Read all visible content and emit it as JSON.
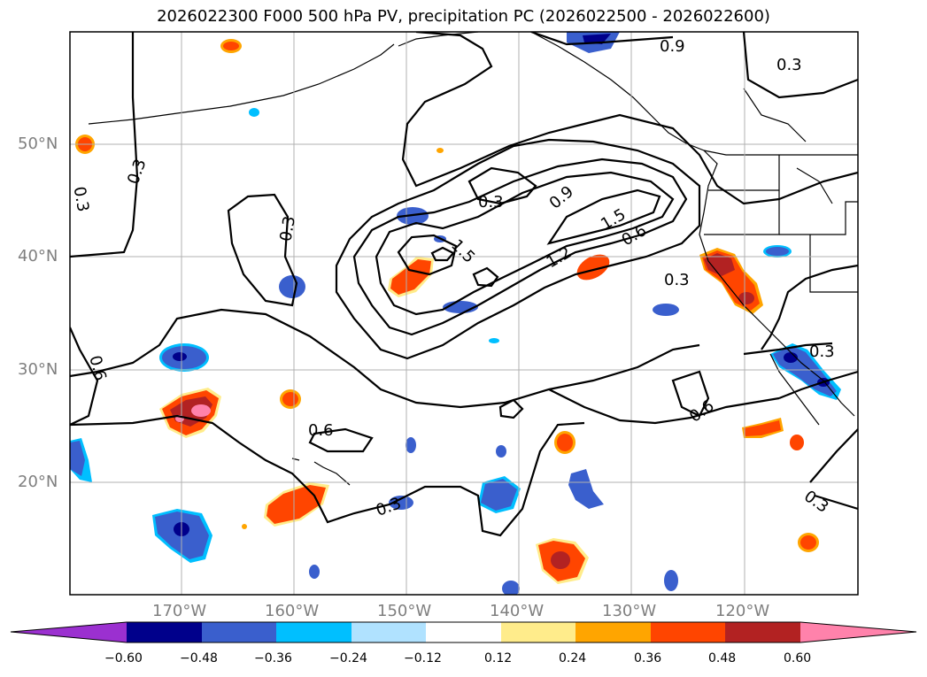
{
  "title": "2026022300 F000 500 hPa PV, precipitation PC (2026022500 - 2026022600)",
  "lat_labels": [
    "50°N",
    "40°N",
    "30°N",
    "20°N"
  ],
  "lon_labels": [
    "170°W",
    "160°W",
    "150°W",
    "140°W",
    "130°W",
    "120°W"
  ],
  "contour_labels": [
    "0.9",
    "0.3",
    "0.3",
    "0.3",
    "0.3",
    "0.3",
    "0.9",
    "1.5",
    "0.6",
    "1.5",
    "1.2",
    "0.3",
    "0.6",
    "0.3",
    "0.6",
    "0.6",
    "0.3",
    "0.3"
  ],
  "colorbar": {
    "ticks": [
      "−0.60",
      "−0.48",
      "−0.36",
      "−0.24",
      "−0.12",
      "0.12",
      "0.24",
      "0.36",
      "0.48",
      "0.60"
    ],
    "colors": [
      "#9b30d0",
      "#00008b",
      "#3a5fcd",
      "#00bfff",
      "#b0e2ff",
      "#ffffff",
      "#ffec8b",
      "#ffa500",
      "#ff4500",
      "#b22222",
      "#ff82ab"
    ]
  }
}
